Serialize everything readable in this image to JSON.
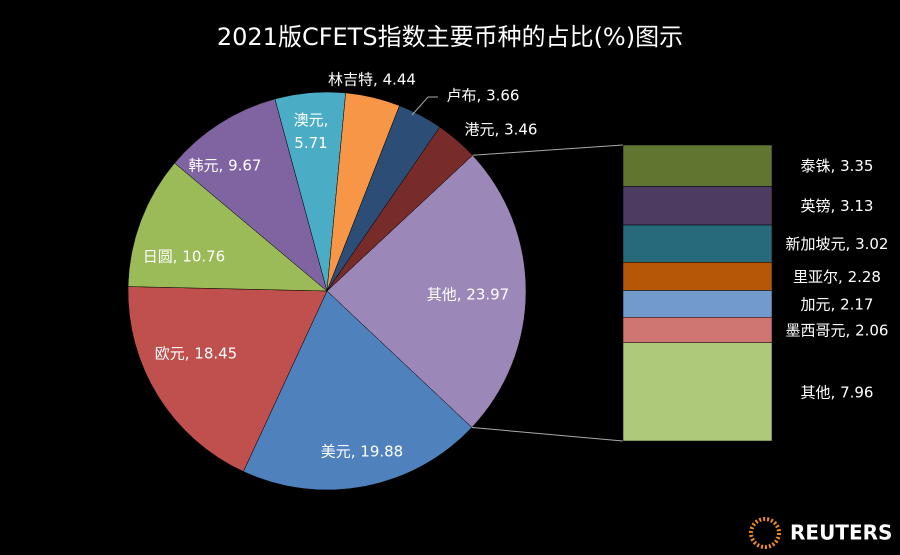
{
  "chart_data": {
    "type": "pie",
    "title": "2021版CFETS指数主要币种的占比(%)图示",
    "values": [
      23.97,
      19.88,
      18.45,
      10.76,
      9.67,
      5.71,
      4.44,
      3.66,
      3.46
    ],
    "value_labels": [
      "其他, 23.97",
      "美元, 19.88",
      "欧元, 18.45",
      "日圆, 10.76",
      "韩元, 9.67",
      "澳元, 5.71",
      "林吉特, 4.44",
      "卢布, 3.66",
      "港元, 3.46"
    ],
    "colors": [
      "#9b87b8",
      "#4f81bd",
      "#c0504d",
      "#9bbb59",
      "#8064a2",
      "#4bacc6",
      "#f79646",
      "#2c4d75",
      "#772c2a"
    ],
    "breakout": {
      "type": "bar",
      "values": [
        3.35,
        3.13,
        3.02,
        2.28,
        2.17,
        2.06,
        7.96
      ],
      "value_labels": [
        "泰铢, 3.35",
        "英镑, 3.13",
        "新加坡元, 3.02",
        "里亚尔, 2.28",
        "加元, 2.17",
        "墨西哥元, 2.06",
        "其他, 7.96"
      ],
      "colors": [
        "#5f7530",
        "#4d3b62",
        "#276a7c",
        "#b65708",
        "#729aca",
        "#d07672",
        "#afc97a"
      ]
    },
    "source": "REUTERS"
  }
}
